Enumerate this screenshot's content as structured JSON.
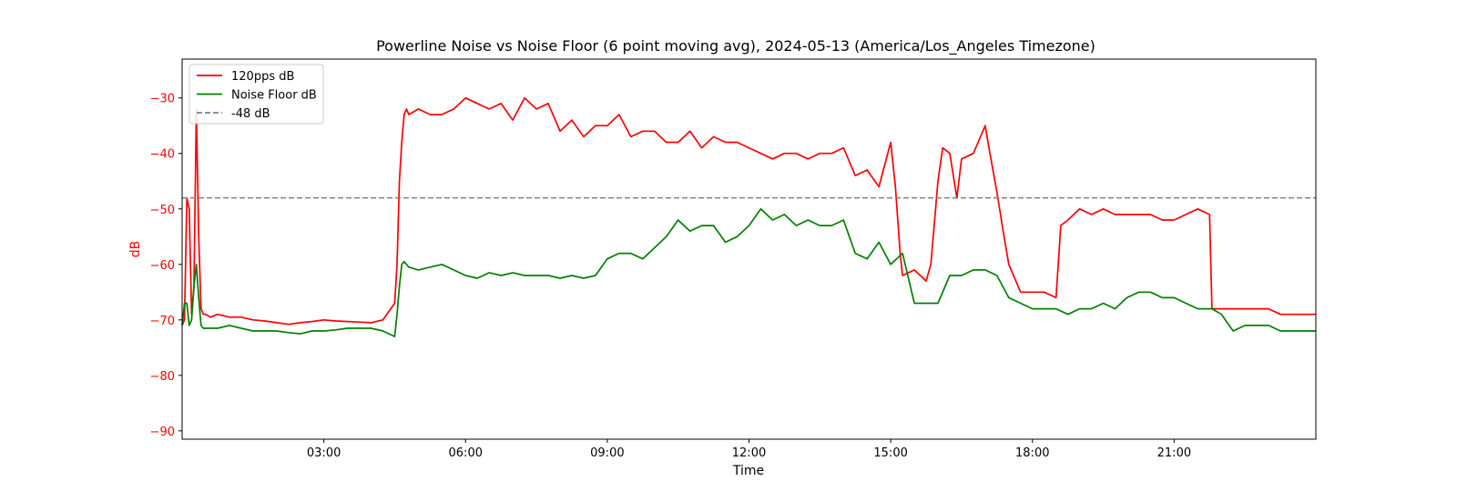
{
  "chart_data": {
    "type": "line",
    "title": "Powerline Noise vs Noise Floor (6 point moving avg), 2024-05-13 (America/Los_Angeles Timezone)",
    "xlabel": "Time",
    "ylabel": "dB",
    "x_unit": "hours",
    "xlim": [
      0,
      24
    ],
    "ylim": [
      -91.5,
      -23.0
    ],
    "x_ticks": [
      {
        "value": 3,
        "label": "03:00"
      },
      {
        "value": 6,
        "label": "06:00"
      },
      {
        "value": 9,
        "label": "09:00"
      },
      {
        "value": 12,
        "label": "12:00"
      },
      {
        "value": 15,
        "label": "15:00"
      },
      {
        "value": 18,
        "label": "18:00"
      },
      {
        "value": 21,
        "label": "21:00"
      }
    ],
    "y_ticks": [
      {
        "value": -30,
        "label": "−30"
      },
      {
        "value": -40,
        "label": "−40"
      },
      {
        "value": -50,
        "label": "−50"
      },
      {
        "value": -60,
        "label": "−60"
      },
      {
        "value": -70,
        "label": "−70"
      },
      {
        "value": -80,
        "label": "−80"
      },
      {
        "value": -90,
        "label": "−90"
      }
    ],
    "legend_position": "top-left",
    "grid": false,
    "series": [
      {
        "name": "120pps dB",
        "color": "#ff0000",
        "style": "solid",
        "x": [
          0.0,
          0.05,
          0.1,
          0.15,
          0.2,
          0.25,
          0.3,
          0.35,
          0.4,
          0.45,
          0.5,
          0.6,
          0.75,
          1.0,
          1.25,
          1.5,
          1.75,
          2.0,
          2.25,
          2.5,
          2.75,
          3.0,
          3.25,
          3.5,
          3.75,
          4.0,
          4.25,
          4.5,
          4.55,
          4.6,
          4.65,
          4.7,
          4.75,
          4.8,
          5.0,
          5.25,
          5.5,
          5.75,
          6.0,
          6.25,
          6.5,
          6.75,
          7.0,
          7.25,
          7.5,
          7.75,
          8.0,
          8.25,
          8.5,
          8.75,
          9.0,
          9.25,
          9.5,
          9.75,
          10.0,
          10.25,
          10.5,
          10.75,
          11.0,
          11.25,
          11.5,
          11.75,
          12.0,
          12.25,
          12.5,
          12.75,
          13.0,
          13.25,
          13.5,
          13.75,
          14.0,
          14.25,
          14.5,
          14.75,
          15.0,
          15.1,
          15.2,
          15.25,
          15.5,
          15.75,
          15.85,
          16.0,
          16.1,
          16.25,
          16.4,
          16.5,
          16.75,
          16.9,
          17.0,
          17.1,
          17.25,
          17.4,
          17.5,
          17.75,
          18.0,
          18.25,
          18.5,
          18.6,
          18.75,
          19.0,
          19.25,
          19.5,
          19.75,
          20.0,
          20.25,
          20.5,
          20.75,
          21.0,
          21.25,
          21.5,
          21.75,
          21.8,
          22.0,
          22.25,
          22.5,
          22.75,
          23.0,
          23.25,
          23.5,
          23.75,
          24.0
        ],
        "y": [
          -71,
          -70,
          -48,
          -50,
          -69,
          -64,
          -32,
          -55,
          -68,
          -69,
          -69,
          -69.5,
          -69,
          -69.5,
          -69.5,
          -70,
          -70.2,
          -70.5,
          -70.8,
          -70.5,
          -70.3,
          -70,
          -70.2,
          -70.3,
          -70.4,
          -70.5,
          -70,
          -67,
          -60,
          -45,
          -38,
          -33,
          -32,
          -33,
          -32,
          -33,
          -33,
          -32,
          -30,
          -31,
          -32,
          -31,
          -34,
          -30,
          -32,
          -31,
          -36,
          -34,
          -37,
          -35,
          -35,
          -33,
          -37,
          -36,
          -36,
          -38,
          -38,
          -36,
          -39,
          -37,
          -38,
          -38,
          -39,
          -40,
          -41,
          -40,
          -40,
          -41,
          -40,
          -40,
          -39,
          -44,
          -43,
          -46,
          -38,
          -46,
          -58,
          -62,
          -61,
          -63,
          -60,
          -45,
          -39,
          -40,
          -48,
          -41,
          -40,
          -37,
          -35,
          -40,
          -47,
          -55,
          -60,
          -65,
          -65,
          -65,
          -66,
          -53,
          -52,
          -50,
          -51,
          -50,
          -51,
          -51,
          -51,
          -51,
          -52,
          -52,
          -51,
          -50,
          -51,
          -68,
          -68,
          -68,
          -68,
          -68,
          -68,
          -69,
          -69,
          -69,
          -69
        ]
      },
      {
        "name": "Noise Floor dB",
        "color": "#008000",
        "style": "solid",
        "x": [
          0.0,
          0.05,
          0.1,
          0.15,
          0.2,
          0.25,
          0.3,
          0.35,
          0.4,
          0.45,
          0.5,
          0.75,
          1.0,
          1.25,
          1.5,
          1.75,
          2.0,
          2.25,
          2.5,
          2.75,
          3.0,
          3.25,
          3.5,
          3.75,
          4.0,
          4.25,
          4.5,
          4.55,
          4.6,
          4.65,
          4.7,
          4.75,
          4.8,
          5.0,
          5.25,
          5.5,
          5.75,
          6.0,
          6.25,
          6.5,
          6.75,
          7.0,
          7.25,
          7.5,
          7.75,
          8.0,
          8.25,
          8.5,
          8.75,
          9.0,
          9.25,
          9.5,
          9.75,
          10.0,
          10.25,
          10.5,
          10.75,
          11.0,
          11.25,
          11.5,
          11.75,
          12.0,
          12.25,
          12.5,
          12.75,
          13.0,
          13.25,
          13.5,
          13.75,
          14.0,
          14.25,
          14.5,
          14.75,
          15.0,
          15.25,
          15.5,
          15.75,
          16.0,
          16.25,
          16.5,
          16.75,
          17.0,
          17.25,
          17.5,
          17.75,
          18.0,
          18.25,
          18.5,
          18.75,
          19.0,
          19.25,
          19.5,
          19.75,
          20.0,
          20.25,
          20.5,
          20.75,
          21.0,
          21.25,
          21.5,
          21.75,
          21.8,
          22.0,
          22.25,
          22.5,
          22.75,
          23.0,
          23.25,
          23.5,
          23.75,
          24.0
        ],
        "y": [
          -71,
          -67,
          -67,
          -71,
          -70,
          -64,
          -60,
          -66,
          -71,
          -71.5,
          -71.5,
          -71.5,
          -71,
          -71.5,
          -72,
          -72,
          -72,
          -72.3,
          -72.5,
          -72,
          -72,
          -71.8,
          -71.5,
          -71.5,
          -71.5,
          -72,
          -73,
          -69,
          -64,
          -60,
          -59.5,
          -60,
          -60.5,
          -61,
          -60.5,
          -60,
          -61,
          -62,
          -62.5,
          -61.5,
          -62,
          -61.5,
          -62,
          -62,
          -62,
          -62.5,
          -62,
          -62.5,
          -62,
          -59,
          -58,
          -58,
          -59,
          -57,
          -55,
          -52,
          -54,
          -53,
          -53,
          -56,
          -55,
          -53,
          -50,
          -52,
          -51,
          -53,
          -52,
          -53,
          -53,
          -52,
          -58,
          -59,
          -56,
          -60,
          -58,
          -67,
          -67,
          -67,
          -62,
          -62,
          -61,
          -61,
          -62,
          -66,
          -67,
          -68,
          -68,
          -68,
          -69,
          -68,
          -68,
          -67,
          -68,
          -66,
          -65,
          -65,
          -66,
          -66,
          -67,
          -68,
          -68,
          -68,
          -69,
          -72,
          -71,
          -71,
          -71,
          -72,
          -72,
          -72,
          -72
        ]
      },
      {
        "name": "-48 dB",
        "color": "#808080",
        "style": "dashed",
        "x": [
          0,
          24
        ],
        "y": [
          -48,
          -48
        ]
      }
    ]
  }
}
